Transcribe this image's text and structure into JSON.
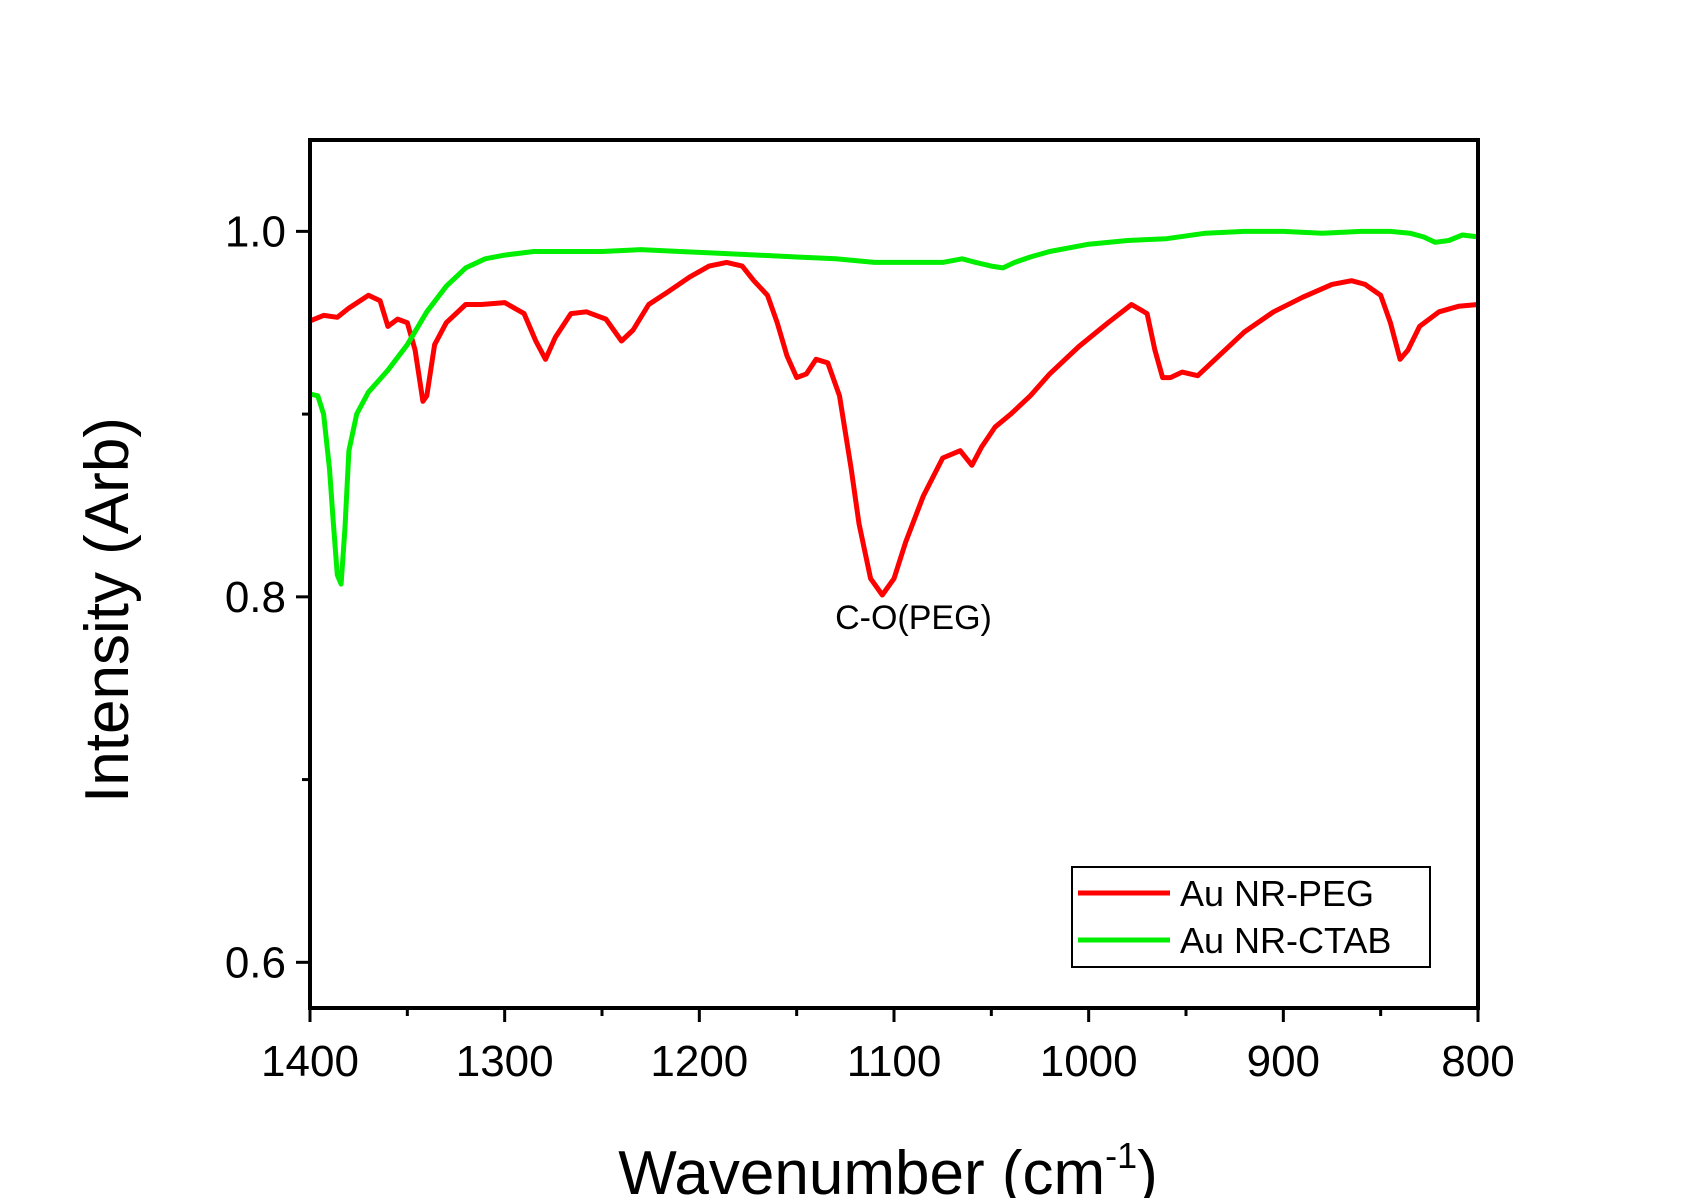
{
  "chart_data": {
    "type": "line",
    "xlabel": "Wavenumber (cm",
    "xlabel_superscript": "-1",
    "xlabel_suffix": ")",
    "ylabel": "Intensity (Arb)",
    "xlim": [
      1400,
      800
    ],
    "ylim": [
      0.575,
      1.05
    ],
    "x_reversed": true,
    "x_ticks": [
      1400,
      1300,
      1200,
      1100,
      1000,
      900,
      800
    ],
    "x_tick_labels": [
      "1400",
      "1300",
      "1200",
      "1100",
      "1000",
      "900",
      "800"
    ],
    "y_ticks": [
      0.6,
      0.8,
      1.0
    ],
    "y_tick_labels": [
      "0.6",
      "0.8",
      "1.0"
    ],
    "y_minor_ticks": [
      0.7,
      0.9
    ],
    "grid": false,
    "legend_position": "bottom-right",
    "annotations": [
      {
        "text": "C-O(PEG)",
        "x": 1090,
        "y": 0.79
      }
    ],
    "series": [
      {
        "name": "Au NR-PEG",
        "color": "#ff0000",
        "x": [
          1400,
          1393,
          1386,
          1380,
          1370,
          1364,
          1360,
          1355,
          1350,
          1346,
          1342,
          1340,
          1336,
          1330,
          1320,
          1312,
          1300,
          1290,
          1284,
          1279,
          1274,
          1266,
          1258,
          1248,
          1240,
          1234,
          1226,
          1216,
          1205,
          1195,
          1186,
          1178,
          1172,
          1165,
          1160,
          1155,
          1150,
          1145,
          1140,
          1134,
          1128,
          1122,
          1118,
          1112,
          1106,
          1100,
          1094,
          1085,
          1075,
          1066,
          1060,
          1055,
          1048,
          1040,
          1030,
          1020,
          1005,
          990,
          978,
          970,
          966,
          962,
          958,
          952,
          944,
          935,
          920,
          905,
          890,
          875,
          865,
          858,
          850,
          845,
          840,
          836,
          830,
          820,
          810,
          800
        ],
        "y": [
          0.951,
          0.954,
          0.953,
          0.958,
          0.965,
          0.962,
          0.948,
          0.952,
          0.95,
          0.935,
          0.907,
          0.91,
          0.938,
          0.95,
          0.96,
          0.96,
          0.961,
          0.955,
          0.94,
          0.93,
          0.942,
          0.955,
          0.956,
          0.952,
          0.94,
          0.946,
          0.96,
          0.967,
          0.975,
          0.981,
          0.983,
          0.981,
          0.973,
          0.965,
          0.95,
          0.932,
          0.92,
          0.922,
          0.93,
          0.928,
          0.91,
          0.87,
          0.84,
          0.81,
          0.801,
          0.81,
          0.83,
          0.855,
          0.876,
          0.88,
          0.872,
          0.882,
          0.893,
          0.9,
          0.91,
          0.922,
          0.937,
          0.95,
          0.96,
          0.955,
          0.935,
          0.92,
          0.92,
          0.923,
          0.921,
          0.93,
          0.945,
          0.956,
          0.964,
          0.971,
          0.973,
          0.971,
          0.965,
          0.95,
          0.93,
          0.935,
          0.948,
          0.956,
          0.959,
          0.96
        ]
      },
      {
        "name": "Au NR-CTAB",
        "color": "#00ee00",
        "x": [
          1400,
          1396,
          1393,
          1390,
          1388,
          1386,
          1384,
          1382,
          1380,
          1376,
          1370,
          1360,
          1350,
          1340,
          1330,
          1320,
          1310,
          1300,
          1285,
          1270,
          1250,
          1230,
          1210,
          1190,
          1170,
          1150,
          1130,
          1110,
          1090,
          1075,
          1065,
          1058,
          1050,
          1044,
          1038,
          1030,
          1020,
          1000,
          980,
          960,
          940,
          920,
          900,
          880,
          860,
          845,
          835,
          828,
          822,
          815,
          808,
          800
        ],
        "y": [
          0.911,
          0.91,
          0.9,
          0.87,
          0.84,
          0.812,
          0.807,
          0.838,
          0.88,
          0.9,
          0.912,
          0.924,
          0.938,
          0.956,
          0.97,
          0.98,
          0.985,
          0.987,
          0.989,
          0.989,
          0.989,
          0.99,
          0.989,
          0.988,
          0.987,
          0.986,
          0.985,
          0.983,
          0.983,
          0.983,
          0.985,
          0.983,
          0.981,
          0.98,
          0.983,
          0.986,
          0.989,
          0.993,
          0.995,
          0.996,
          0.999,
          1.0,
          1.0,
          0.999,
          1.0,
          1.0,
          0.999,
          0.997,
          0.994,
          0.995,
          0.998,
          0.997
        ]
      }
    ]
  }
}
